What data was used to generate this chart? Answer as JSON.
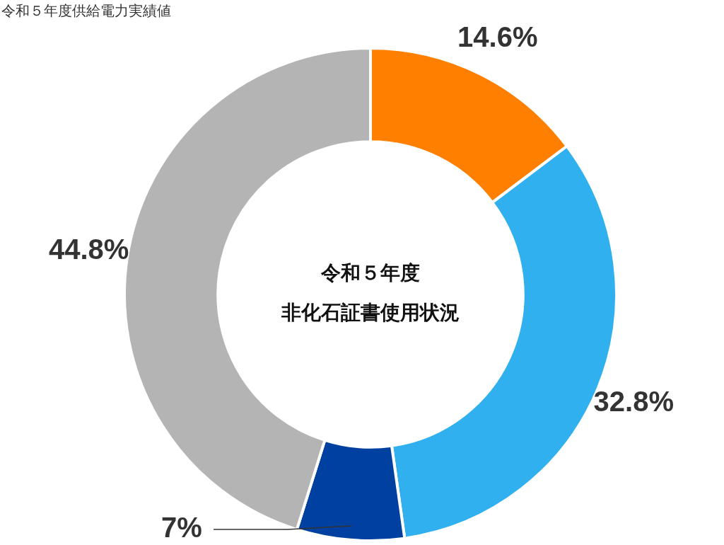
{
  "chart_data": {
    "type": "donut",
    "title": "令和５年度供給電力実績値",
    "annotations": [
      "令和５年度",
      "非化石証書使用状況"
    ],
    "categories": [
      null,
      null,
      null,
      null
    ],
    "values": [
      14.6,
      32.8,
      7,
      44.8
    ],
    "colors": [
      "#ff8000",
      "#30b0ee",
      "#0040a0",
      "#b4b4b4"
    ],
    "value_labels": [
      "14.6%",
      "32.8%",
      "7%",
      "44.8%"
    ],
    "legend": false
  }
}
